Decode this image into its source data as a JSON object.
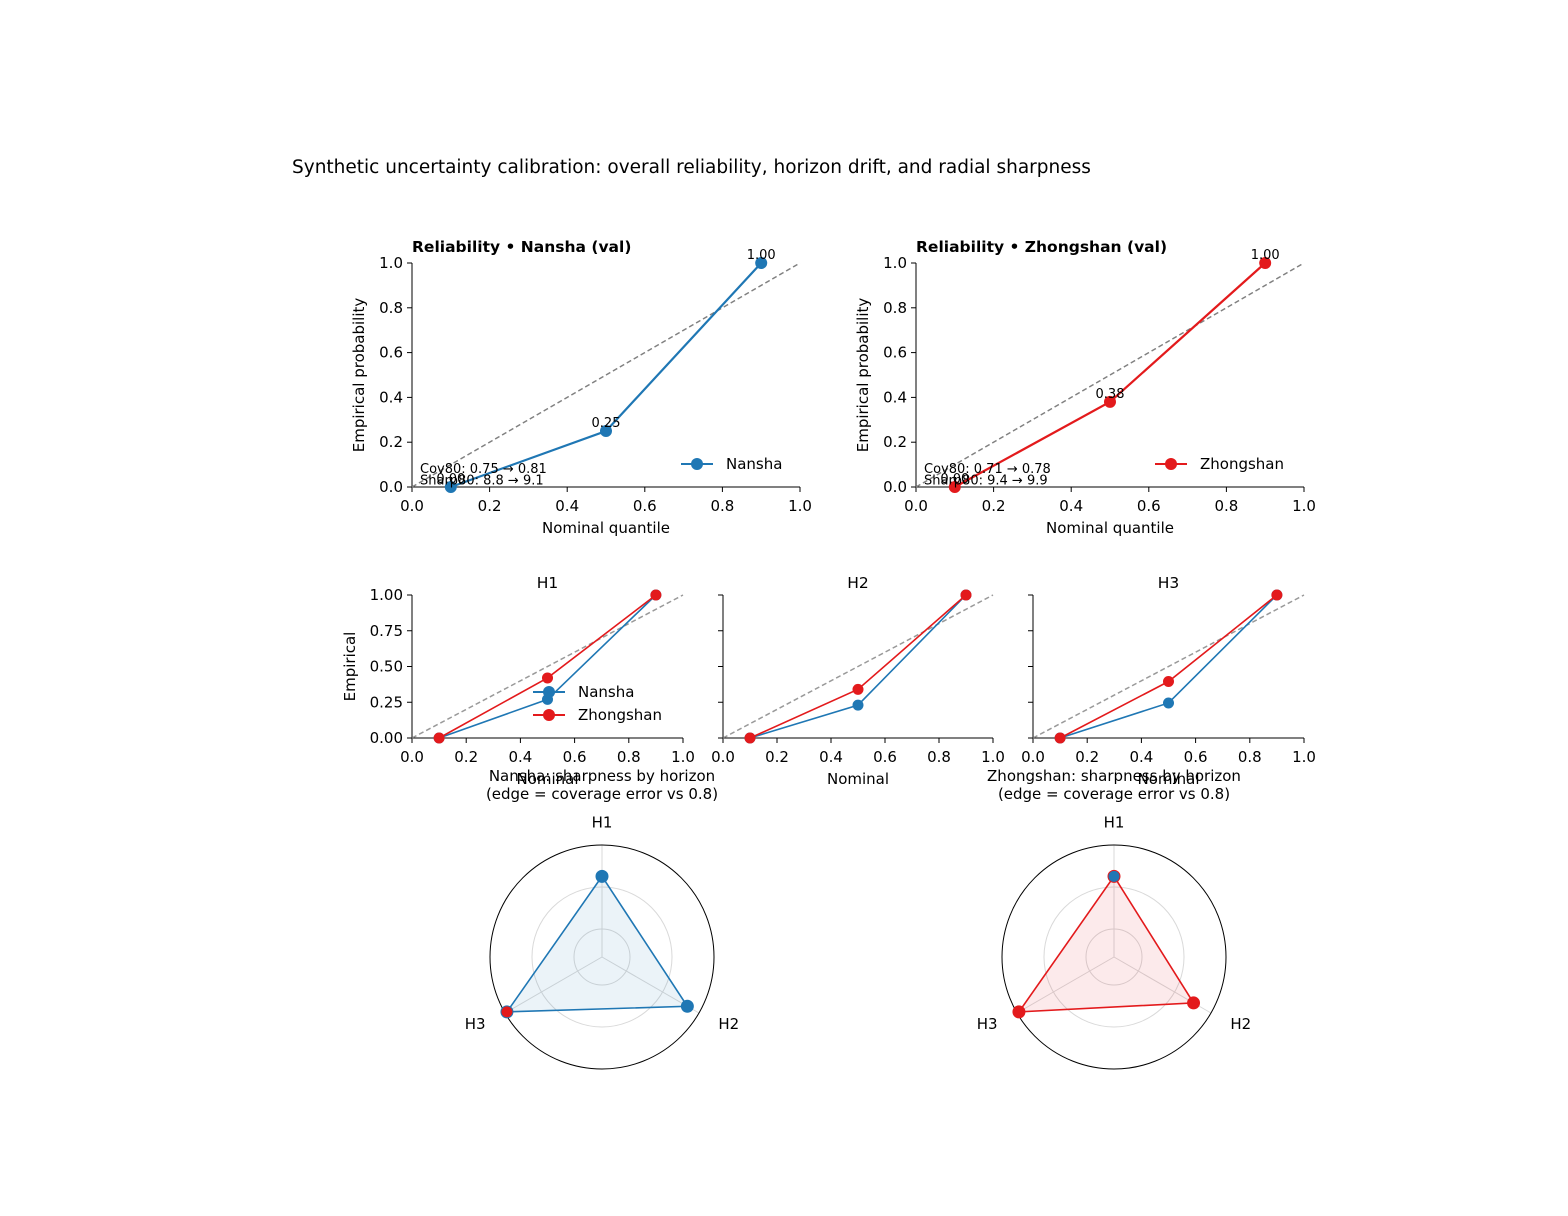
{
  "figure": {
    "suptitle": "Synthetic uncertainty calibration: overall reliability, horizon drift, and radial sharpness"
  },
  "colors": {
    "nansha": "#1f77b4",
    "zhongshan": "#e31a1c",
    "diagonal": "#808080",
    "grid": "#d9d9d9"
  },
  "chart_data": [
    {
      "type": "line",
      "title": "Reliability • Nansha (val)",
      "xlabel": "Nominal quantile",
      "ylabel": "Empirical probability",
      "xlim": [
        0,
        1
      ],
      "ylim": [
        0,
        1
      ],
      "xticks": [
        "0.0",
        "0.2",
        "0.4",
        "0.6",
        "0.8",
        "1.0"
      ],
      "yticks": [
        "0.0",
        "0.2",
        "0.4",
        "0.6",
        "0.8",
        "1.0"
      ],
      "legend_loc": "lower-right",
      "series": [
        {
          "name": "Nansha",
          "color": "#1f77b4",
          "x": [
            0.1,
            0.5,
            0.9
          ],
          "y": [
            0.0,
            0.25,
            1.0
          ],
          "labels": [
            "0.00",
            "0.25",
            "1.00"
          ]
        }
      ],
      "annotations": [
        "Cov80: 0.75 → 0.81",
        "Sharp80: 8.8 → 9.1"
      ]
    },
    {
      "type": "line",
      "title": "Reliability • Zhongshan (val)",
      "xlabel": "Nominal quantile",
      "ylabel": "Empirical probability",
      "xlim": [
        0,
        1
      ],
      "ylim": [
        0,
        1
      ],
      "xticks": [
        "0.0",
        "0.2",
        "0.4",
        "0.6",
        "0.8",
        "1.0"
      ],
      "yticks": [
        "0.0",
        "0.2",
        "0.4",
        "0.6",
        "0.8",
        "1.0"
      ],
      "legend_loc": "lower-right",
      "series": [
        {
          "name": "Zhongshan",
          "color": "#e31a1c",
          "x": [
            0.1,
            0.5,
            0.9
          ],
          "y": [
            0.0,
            0.38,
            1.0
          ],
          "labels": [
            "0.00",
            "0.38",
            "1.00"
          ]
        }
      ],
      "annotations": [
        "Cov80: 0.71 → 0.78",
        "Sharp80: 9.4 → 9.9"
      ]
    },
    {
      "type": "line",
      "title": "H1",
      "xlabel": "Nominal",
      "ylabel": "Empirical",
      "xlim": [
        0,
        1
      ],
      "ylim": [
        0,
        1
      ],
      "xticks": [
        "0.0",
        "0.2",
        "0.4",
        "0.6",
        "0.8",
        "1.0"
      ],
      "yticks": [
        "0.00",
        "0.25",
        "0.50",
        "0.75",
        "1.00"
      ],
      "legend_loc": "center-right",
      "series": [
        {
          "name": "Nansha",
          "color": "#1f77b4",
          "x": [
            0.1,
            0.5,
            0.9
          ],
          "y": [
            0.0,
            0.27,
            1.0
          ]
        },
        {
          "name": "Zhongshan",
          "color": "#e31a1c",
          "x": [
            0.1,
            0.5,
            0.9
          ],
          "y": [
            0.0,
            0.42,
            1.0
          ]
        }
      ]
    },
    {
      "type": "line",
      "title": "H2",
      "xlabel": "Nominal",
      "xlim": [
        0,
        1
      ],
      "ylim": [
        0,
        1
      ],
      "xticks": [
        "0.0",
        "0.2",
        "0.4",
        "0.6",
        "0.8",
        "1.0"
      ],
      "series": [
        {
          "color": "#1f77b4",
          "x": [
            0.1,
            0.5,
            0.9
          ],
          "y": [
            0.0,
            0.23,
            1.0
          ]
        },
        {
          "color": "#e31a1c",
          "x": [
            0.1,
            0.5,
            0.9
          ],
          "y": [
            0.0,
            0.34,
            1.0
          ]
        }
      ]
    },
    {
      "type": "line",
      "title": "H3",
      "xlabel": "Nominal",
      "xlim": [
        0,
        1
      ],
      "ylim": [
        0,
        1
      ],
      "xticks": [
        "0.0",
        "0.2",
        "0.4",
        "0.6",
        "0.8",
        "1.0"
      ],
      "series": [
        {
          "color": "#1f77b4",
          "x": [
            0.1,
            0.5,
            0.9
          ],
          "y": [
            0.0,
            0.245,
            1.0
          ]
        },
        {
          "color": "#e31a1c",
          "x": [
            0.1,
            0.5,
            0.9
          ],
          "y": [
            0.0,
            0.395,
            1.0
          ]
        }
      ]
    },
    {
      "type": "radar",
      "title": "Nansha: sharpness by horizon",
      "subtitle": "(edge = coverage error vs 0.8)",
      "axes": [
        "H1",
        "H2",
        "H3"
      ],
      "rmax": 1.0,
      "color": "#1f77b4",
      "values": [
        0.72,
        0.88,
        0.98
      ],
      "edge_colors": [
        "#1f77b4",
        "#1f77b4",
        "#e31a1c"
      ]
    },
    {
      "type": "radar",
      "title": "Zhongshan: sharpness by horizon",
      "subtitle": "(edge = coverage error vs 0.8)",
      "axes": [
        "H1",
        "H2",
        "H3"
      ],
      "rmax": 1.0,
      "color": "#e31a1c",
      "values": [
        0.72,
        0.82,
        0.98
      ],
      "edge_colors": [
        "#1f77b4",
        "#e31a1c",
        "#e31a1c"
      ]
    }
  ]
}
